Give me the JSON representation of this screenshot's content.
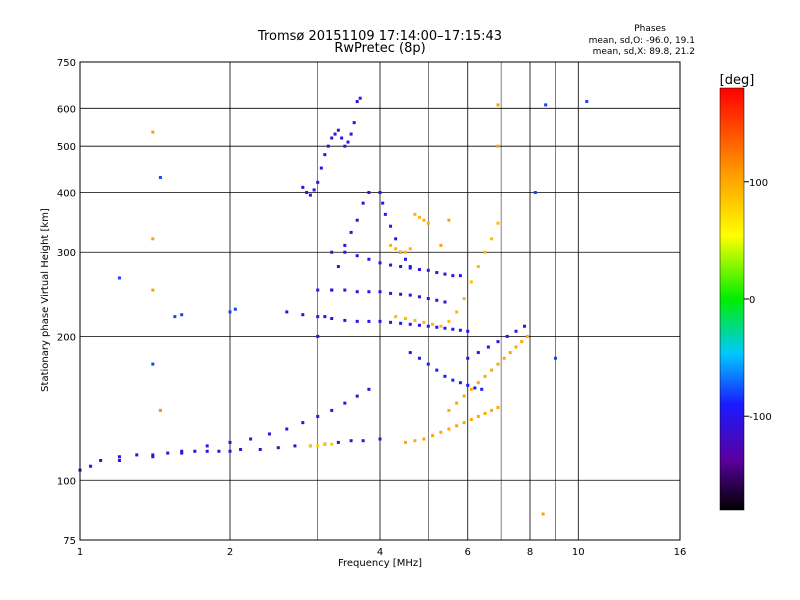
{
  "chart_data": {
    "type": "scatter",
    "title": "Tromsø 20151109 17:14:00–17:15:43",
    "subtitle": "RwPretec (8p)",
    "xlabel": "Frequency [MHz]",
    "ylabel": "Stationary phase Virtual Height [km]",
    "x_scale": "log",
    "y_scale": "log",
    "xlim": [
      1,
      16
    ],
    "ylim": [
      75,
      750
    ],
    "x_ticks": [
      1,
      2,
      4,
      6,
      8,
      10,
      16
    ],
    "x_tick_labels": [
      "1",
      "2",
      "4",
      "6",
      "8",
      "10",
      "16"
    ],
    "y_ticks": [
      75,
      100,
      200,
      300,
      400,
      500,
      600,
      750
    ],
    "y_tick_labels": [
      "75",
      "100",
      "200",
      "300",
      "400",
      "500",
      "600",
      "750"
    ],
    "grid": true,
    "stats": {
      "heading": "Phases",
      "line_o": "mean, sd,O: -96.0, 19.1",
      "line_x": "mean, sd,X:  89.8, 21.2"
    },
    "colorbar": {
      "label": "[deg]",
      "ticks": [
        100,
        0,
        -100
      ],
      "tick_labels": [
        "100",
        "0",
        "-100"
      ],
      "range": [
        -180,
        180
      ]
    },
    "traces": [
      {
        "name": "",
        "phase": -110,
        "points": [
          [
            1.0,
            105
          ],
          [
            1.05,
            107
          ],
          [
            1.1,
            110
          ],
          [
            1.2,
            112
          ],
          [
            1.3,
            113
          ],
          [
            1.4,
            113
          ],
          [
            1.5,
            114
          ],
          [
            1.6,
            114
          ],
          [
            1.7,
            115
          ],
          [
            1.8,
            115
          ],
          [
            1.9,
            115
          ],
          [
            2.0,
            115
          ],
          [
            2.1,
            116
          ],
          [
            2.3,
            116
          ],
          [
            2.5,
            117
          ],
          [
            2.7,
            118
          ],
          [
            2.9,
            118
          ],
          [
            3.1,
            119
          ],
          [
            3.3,
            120
          ],
          [
            3.5,
            121
          ],
          [
            3.7,
            121
          ],
          [
            4.0,
            122
          ]
        ]
      },
      {
        "name": "",
        "phase": -105,
        "points": [
          [
            1.2,
            110
          ],
          [
            1.4,
            112
          ],
          [
            1.6,
            115
          ],
          [
            1.8,
            118
          ],
          [
            2.0,
            120
          ],
          [
            2.2,
            122
          ],
          [
            2.4,
            125
          ],
          [
            2.6,
            128
          ],
          [
            2.8,
            132
          ],
          [
            3.0,
            136
          ],
          [
            3.2,
            140
          ],
          [
            3.4,
            145
          ],
          [
            3.6,
            150
          ],
          [
            3.8,
            155
          ]
        ]
      },
      {
        "name": "",
        "phase": -105,
        "points": [
          [
            2.8,
            410
          ],
          [
            2.85,
            400
          ],
          [
            2.9,
            395
          ],
          [
            2.95,
            405
          ],
          [
            3.0,
            420
          ],
          [
            3.05,
            450
          ],
          [
            3.1,
            480
          ],
          [
            3.15,
            500
          ],
          [
            3.2,
            520
          ],
          [
            3.25,
            530
          ],
          [
            3.3,
            540
          ],
          [
            3.35,
            520
          ],
          [
            3.4,
            500
          ],
          [
            3.45,
            510
          ],
          [
            3.5,
            530
          ],
          [
            3.55,
            560
          ],
          [
            3.6,
            620
          ],
          [
            3.65,
            630
          ]
        ]
      },
      {
        "name": "",
        "phase": -110,
        "points": [
          [
            3.0,
            200
          ],
          [
            3.1,
            220
          ],
          [
            3.2,
            250
          ],
          [
            3.3,
            280
          ],
          [
            3.4,
            310
          ],
          [
            3.5,
            330
          ],
          [
            3.6,
            350
          ],
          [
            3.7,
            380
          ],
          [
            3.8,
            400
          ]
        ]
      },
      {
        "name": "",
        "phase": -100,
        "points": [
          [
            3.2,
            300
          ],
          [
            3.4,
            300
          ],
          [
            3.6,
            295
          ],
          [
            3.8,
            290
          ],
          [
            4.0,
            285
          ],
          [
            4.2,
            282
          ],
          [
            4.4,
            280
          ],
          [
            4.6,
            278
          ],
          [
            4.8,
            276
          ],
          [
            5.0,
            275
          ],
          [
            5.2,
            272
          ],
          [
            5.4,
            270
          ],
          [
            5.6,
            268
          ],
          [
            5.8,
            268
          ]
        ]
      },
      {
        "name": "",
        "phase": -105,
        "points": [
          [
            3.0,
            250
          ],
          [
            3.2,
            250
          ],
          [
            3.4,
            250
          ],
          [
            3.6,
            248
          ],
          [
            3.8,
            248
          ],
          [
            4.0,
            248
          ],
          [
            4.2,
            246
          ],
          [
            4.4,
            245
          ],
          [
            4.6,
            244
          ],
          [
            4.8,
            242
          ],
          [
            5.0,
            240
          ],
          [
            5.2,
            238
          ],
          [
            5.4,
            236
          ]
        ]
      },
      {
        "name": "",
        "phase": -100,
        "points": [
          [
            2.6,
            225
          ],
          [
            2.8,
            222
          ],
          [
            3.0,
            220
          ],
          [
            3.2,
            218
          ],
          [
            3.4,
            216
          ],
          [
            3.6,
            215
          ],
          [
            3.8,
            215
          ],
          [
            4.0,
            215
          ],
          [
            4.2,
            214
          ],
          [
            4.4,
            213
          ],
          [
            4.6,
            212
          ],
          [
            4.8,
            211
          ],
          [
            5.0,
            210
          ],
          [
            5.2,
            209
          ],
          [
            5.4,
            208
          ],
          [
            5.6,
            207
          ],
          [
            5.8,
            206
          ],
          [
            6.0,
            205
          ]
        ]
      },
      {
        "name": "",
        "phase": -95,
        "points": [
          [
            4.0,
            400
          ],
          [
            4.05,
            380
          ],
          [
            4.1,
            360
          ],
          [
            4.2,
            340
          ],
          [
            4.3,
            320
          ],
          [
            4.4,
            300
          ],
          [
            4.5,
            290
          ],
          [
            4.6,
            280
          ]
        ]
      },
      {
        "name": "",
        "phase": -90,
        "points": [
          [
            4.6,
            185
          ],
          [
            4.8,
            180
          ],
          [
            5.0,
            175
          ],
          [
            5.2,
            170
          ],
          [
            5.4,
            165
          ],
          [
            5.6,
            162
          ],
          [
            5.8,
            160
          ],
          [
            6.0,
            158
          ],
          [
            6.2,
            156
          ],
          [
            6.4,
            155
          ]
        ]
      },
      {
        "name": "",
        "phase": 95,
        "points": [
          [
            4.2,
            310
          ],
          [
            4.3,
            305
          ],
          [
            4.4,
            300
          ],
          [
            4.5,
            300
          ],
          [
            4.6,
            305
          ],
          [
            4.7,
            360
          ],
          [
            4.8,
            355
          ],
          [
            4.9,
            350
          ],
          [
            5.0,
            345
          ]
        ]
      },
      {
        "name": "",
        "phase": 100,
        "points": [
          [
            4.5,
            120
          ],
          [
            4.7,
            121
          ],
          [
            4.9,
            122
          ],
          [
            5.1,
            124
          ],
          [
            5.3,
            126
          ],
          [
            5.5,
            128
          ],
          [
            5.7,
            130
          ],
          [
            5.9,
            132
          ],
          [
            6.1,
            134
          ],
          [
            6.3,
            136
          ],
          [
            6.5,
            138
          ],
          [
            6.7,
            140
          ],
          [
            6.9,
            142
          ]
        ]
      },
      {
        "name": "",
        "phase": 90,
        "points": [
          [
            4.3,
            220
          ],
          [
            4.5,
            218
          ],
          [
            4.7,
            216
          ],
          [
            4.9,
            214
          ],
          [
            5.1,
            212
          ],
          [
            5.3,
            210
          ],
          [
            5.5,
            215
          ],
          [
            5.7,
            225
          ],
          [
            5.9,
            240
          ],
          [
            6.1,
            260
          ],
          [
            6.3,
            280
          ],
          [
            6.5,
            300
          ],
          [
            6.7,
            320
          ],
          [
            6.9,
            345
          ]
        ]
      },
      {
        "name": "",
        "phase": 100,
        "points": [
          [
            5.5,
            140
          ],
          [
            5.7,
            145
          ],
          [
            5.9,
            150
          ],
          [
            6.1,
            155
          ],
          [
            6.3,
            160
          ],
          [
            6.5,
            165
          ],
          [
            6.7,
            170
          ],
          [
            6.9,
            175
          ],
          [
            7.1,
            180
          ],
          [
            7.3,
            185
          ],
          [
            7.5,
            190
          ],
          [
            7.7,
            195
          ],
          [
            7.9,
            200
          ]
        ]
      },
      {
        "name": "",
        "phase": -100,
        "points": [
          [
            6.0,
            180
          ],
          [
            6.3,
            185
          ],
          [
            6.6,
            190
          ],
          [
            6.9,
            195
          ],
          [
            7.2,
            200
          ],
          [
            7.5,
            205
          ],
          [
            7.8,
            210
          ]
        ]
      },
      {
        "name": "",
        "phase": 80,
        "points": [
          [
            2.9,
            118
          ],
          [
            3.0,
            118
          ],
          [
            3.1,
            119
          ],
          [
            3.2,
            119
          ]
        ]
      },
      {
        "name": "",
        "phase": -80,
        "points": [
          [
            1.2,
            265
          ],
          [
            1.55,
            220
          ],
          [
            1.6,
            222
          ],
          [
            2.0,
            225
          ],
          [
            2.05,
            228
          ],
          [
            1.45,
            430
          ],
          [
            1.4,
            175
          ],
          [
            1.45,
            140
          ],
          [
            8.2,
            400
          ],
          [
            8.6,
            610
          ],
          [
            9.0,
            180
          ],
          [
            10.4,
            620
          ]
        ]
      },
      {
        "name": "",
        "phase": 105,
        "points": [
          [
            1.4,
            535
          ],
          [
            1.4,
            320
          ],
          [
            1.4,
            250
          ],
          [
            1.45,
            140
          ],
          [
            6.9,
            610
          ],
          [
            6.9,
            500
          ],
          [
            8.5,
            85
          ],
          [
            5.3,
            310
          ],
          [
            5.5,
            350
          ]
        ]
      }
    ]
  }
}
